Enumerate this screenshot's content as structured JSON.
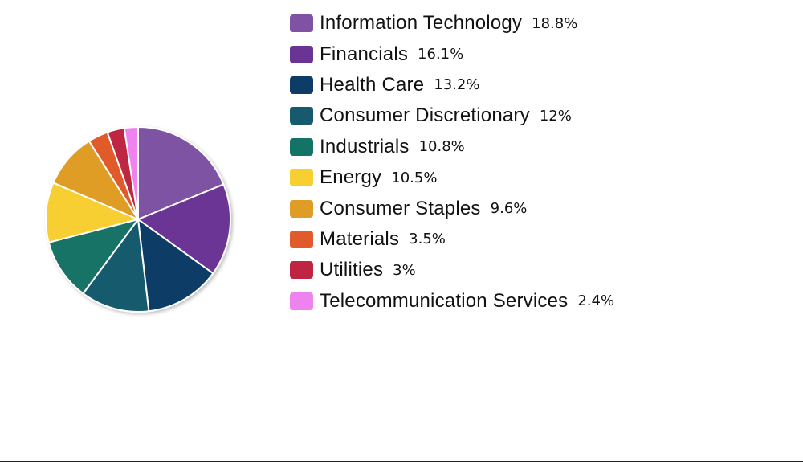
{
  "chart_data": {
    "type": "pie",
    "title": "",
    "categories": [
      "Information Technology",
      "Financials",
      "Health Care",
      "Consumer Discretionary",
      "Industrials",
      "Energy",
      "Consumer Staples",
      "Materials",
      "Utilities",
      "Telecommunication Services"
    ],
    "values": [
      18.8,
      16.1,
      13.2,
      12,
      10.8,
      10.5,
      9.6,
      3.5,
      3,
      2.4
    ],
    "value_labels": [
      "18.8%",
      "16.1%",
      "13.2%",
      "12%",
      "10.8%",
      "10.5%",
      "9.6%",
      "3.5%",
      "3%",
      "2.4%"
    ],
    "colors": [
      "#7f52a3",
      "#6a3494",
      "#0d3d66",
      "#175a6e",
      "#137366",
      "#f7cf30",
      "#df9d27",
      "#e05a2b",
      "#bf2542",
      "#ee82ee"
    ],
    "start_angle_deg": 0,
    "direction": "clockwise",
    "legend_position": "right"
  }
}
